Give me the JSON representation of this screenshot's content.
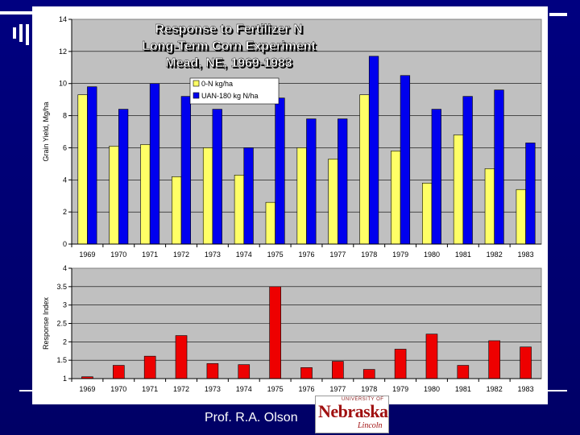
{
  "slide": {
    "credit": "Prof. R.A. Olson",
    "logo": {
      "top": "UNIVERSITY OF",
      "main": "Nebraska",
      "bottom": "Lincoln"
    },
    "colors": {
      "background": "#000080",
      "panel": "#ffffff",
      "plot_area": "#c0c0c0"
    }
  },
  "chart_data": [
    {
      "type": "bar",
      "title": "Response to Fertilizer N\nLong-Term Corn Experiment\nMead, NE, 1969-1983",
      "ylabel": "Grain Yield, Mg/ha",
      "xlabel": "",
      "ylim": [
        0,
        14
      ],
      "yticks": [
        "0",
        "2",
        "4",
        "6",
        "8",
        "10",
        "12",
        "14"
      ],
      "grid": true,
      "legend": "top-center",
      "categories": [
        "1969",
        "1970",
        "1971",
        "1972",
        "1973",
        "1974",
        "1975",
        "1976",
        "1977",
        "1978",
        "1979",
        "1980",
        "1981",
        "1982",
        "1983"
      ],
      "series": [
        {
          "name": "0-N kg/ha",
          "color": "#ffff66",
          "values": [
            9.3,
            6.1,
            6.2,
            4.2,
            6.0,
            4.3,
            2.6,
            6.0,
            5.3,
            9.3,
            5.8,
            3.8,
            6.8,
            4.7,
            3.4
          ]
        },
        {
          "name": "UAN-180 kg N/ha",
          "color": "#0000ee",
          "values": [
            9.8,
            8.4,
            10.0,
            9.2,
            8.4,
            6.0,
            9.1,
            7.8,
            7.8,
            11.7,
            10.5,
            8.4,
            9.2,
            9.6,
            6.3
          ]
        }
      ]
    },
    {
      "type": "bar",
      "title": "",
      "ylabel": "Response Index",
      "xlabel": "",
      "ylim": [
        1,
        4
      ],
      "yticks": [
        "1",
        "1.5",
        "2",
        "2.5",
        "3",
        "3.5",
        "4"
      ],
      "grid": true,
      "categories": [
        "1969",
        "1970",
        "1971",
        "1972",
        "1973",
        "1974",
        "1975",
        "1976",
        "1977",
        "1978",
        "1979",
        "1980",
        "1981",
        "1982",
        "1983"
      ],
      "series": [
        {
          "color": "#ee0000",
          "values": [
            1.05,
            1.36,
            1.61,
            2.17,
            1.41,
            1.38,
            3.5,
            1.3,
            1.47,
            1.25,
            1.8,
            2.21,
            1.36,
            2.03,
            1.86
          ]
        }
      ]
    }
  ]
}
